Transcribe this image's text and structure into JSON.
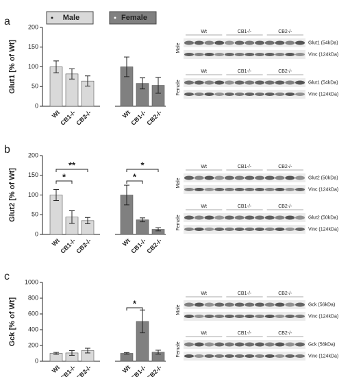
{
  "chart_data": [
    {
      "type": "bar",
      "panel": "a",
      "ylabel": "Glut1 [% of Wt]",
      "legend": true,
      "categories": [
        "Wt",
        "CB1-/-",
        "CB2-/-"
      ],
      "series": [
        {
          "name": "Male",
          "color": "#d9d9d9",
          "values": [
            100,
            82,
            64
          ],
          "errors": [
            15,
            13,
            13
          ]
        },
        {
          "name": "Female",
          "color": "#808080",
          "values": [
            100,
            58,
            53
          ],
          "errors": [
            25,
            14,
            20
          ]
        }
      ],
      "ylim": [
        0,
        200
      ],
      "yticks": [
        0,
        50,
        100,
        150,
        200
      ],
      "significance": [],
      "blots": [
        {
          "sex": "Male",
          "lanes": [
            "Wt",
            "CB1-/-",
            "CB2-/-"
          ],
          "bands": [
            "Glut1 (54kDa)",
            "Vinc (124kDa)"
          ]
        },
        {
          "sex": "Female",
          "lanes": [
            "Wt",
            "CB1-/-",
            "CB2-/-"
          ],
          "bands": [
            "Glut1 (54kDa)",
            "Vinc (124kDa)"
          ]
        }
      ]
    },
    {
      "type": "bar",
      "panel": "b",
      "ylabel": "Glut2 [% of Wt]",
      "legend": false,
      "categories": [
        "Wt",
        "CB1-/-",
        "CB2-/-"
      ],
      "series": [
        {
          "name": "Male",
          "color": "#d9d9d9",
          "values": [
            100,
            44,
            35
          ],
          "errors": [
            14,
            16,
            8
          ]
        },
        {
          "name": "Female",
          "color": "#808080",
          "values": [
            100,
            37,
            13
          ],
          "errors": [
            25,
            5,
            4
          ]
        }
      ],
      "ylim": [
        0,
        200
      ],
      "yticks": [
        0,
        50,
        100,
        150,
        200
      ],
      "significance": [
        {
          "series": 0,
          "from": 0,
          "to": 1,
          "label": "*"
        },
        {
          "series": 0,
          "from": 0,
          "to": 2,
          "label": "**"
        },
        {
          "series": 1,
          "from": 0,
          "to": 1,
          "label": "*"
        },
        {
          "series": 1,
          "from": 0,
          "to": 2,
          "label": "*"
        }
      ],
      "blots": [
        {
          "sex": "Male",
          "lanes": [
            "Wt",
            "CB1-/-",
            "CB2-/-"
          ],
          "bands": [
            "Glut2 (50kDa)",
            "Vinc (124kDa)"
          ]
        },
        {
          "sex": "Female",
          "lanes": [
            "Wt",
            "CB1-/-",
            "CB2-/-"
          ],
          "bands": [
            "Glut2 (50kDa)",
            "Vinc (124kDa)"
          ]
        }
      ]
    },
    {
      "type": "bar",
      "panel": "c",
      "ylabel": "Gck [% of Wt]",
      "legend": false,
      "categories": [
        "Wt",
        "CB1-/-",
        "CB2-/-"
      ],
      "series": [
        {
          "name": "Male",
          "color": "#d9d9d9",
          "values": [
            100,
            105,
            135
          ],
          "errors": [
            12,
            30,
            30
          ]
        },
        {
          "name": "Female",
          "color": "#808080",
          "values": [
            100,
            505,
            115
          ],
          "errors": [
            10,
            145,
            25
          ]
        }
      ],
      "ylim": [
        0,
        1000
      ],
      "yticks": [
        0,
        200,
        400,
        600,
        800,
        1000
      ],
      "significance": [
        {
          "series": 1,
          "from": 0,
          "to": 1,
          "label": "*"
        }
      ],
      "blots": [
        {
          "sex": "Male",
          "lanes": [
            "Wt",
            "CB1-/-",
            "CB2-/-"
          ],
          "bands": [
            "Gck (56kDa)",
            "Vinc (124kDa)"
          ]
        },
        {
          "sex": "Female",
          "lanes": [
            "Wt",
            "CB1-/-",
            "CB2-/-"
          ],
          "bands": [
            "Gck (56kDa)",
            "Vinc (124kDa)"
          ]
        }
      ]
    }
  ]
}
